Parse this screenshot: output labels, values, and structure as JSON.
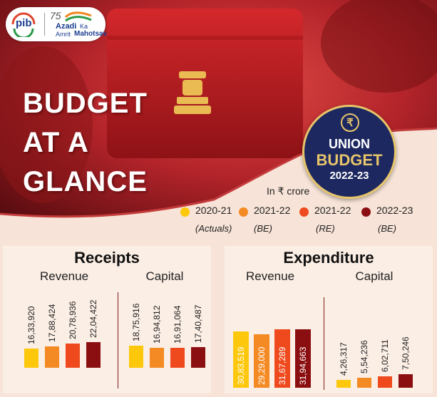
{
  "branding": {
    "pib_logo_text": "pib",
    "azadi_number": "75",
    "azadi_line1": "Azadi",
    "azadi_ka": "Ka",
    "azadi_line2": "Amrit",
    "azadi_line3": "Mahotsav"
  },
  "headline": {
    "line1": "BUDGET",
    "line2": "AT A",
    "line3": "GLANCE"
  },
  "badge": {
    "symbol": "₹",
    "line1": "UNION",
    "line2": "BUDGET",
    "line3": "2022-23"
  },
  "unit_note": "In ₹ crore",
  "legend": [
    {
      "year": "2020-21",
      "status": "(Actuals)",
      "color": "#fdc80c"
    },
    {
      "year": "2021-22",
      "status": "(BE)",
      "color": "#f48a23"
    },
    {
      "year": "2021-22",
      "status": "(RE)",
      "color": "#ee4a1d"
    },
    {
      "year": "2022-23",
      "status": "(BE)",
      "color": "#8b0f10"
    }
  ],
  "colors": {
    "hero_dark": "#8b1518",
    "hero_mid": "#c22024",
    "badge_navy": "#1d2860",
    "badge_gold": "#e7c56a",
    "panel_bg": "#fbeee5"
  },
  "chart_data": [
    {
      "type": "bar",
      "title": "Receipts",
      "groups": [
        {
          "name": "Revenue",
          "labels": [
            "16,33,920",
            "17,88,424",
            "20,78,936",
            "22,04,422"
          ],
          "values": [
            1633920,
            1788424,
            2078936,
            2204422
          ]
        },
        {
          "name": "Capital",
          "labels": [
            "18,75,916",
            "16,94,812",
            "16,91,064",
            "17,40,487"
          ],
          "values": [
            1875916,
            1694812,
            1691064,
            1740487
          ]
        }
      ]
    },
    {
      "type": "bar",
      "title": "Expenditure",
      "groups": [
        {
          "name": "Revenue",
          "labels": [
            "30,83,519",
            "29,29,000",
            "31,67,289",
            "31,94,663"
          ],
          "values": [
            3083519,
            2929000,
            3167289,
            3194663
          ]
        },
        {
          "name": "Capital",
          "labels": [
            "4,26,317",
            "5,54,236",
            "6,02,711",
            "7,50,246"
          ],
          "values": [
            426317,
            554236,
            602711,
            750246
          ]
        }
      ]
    }
  ]
}
